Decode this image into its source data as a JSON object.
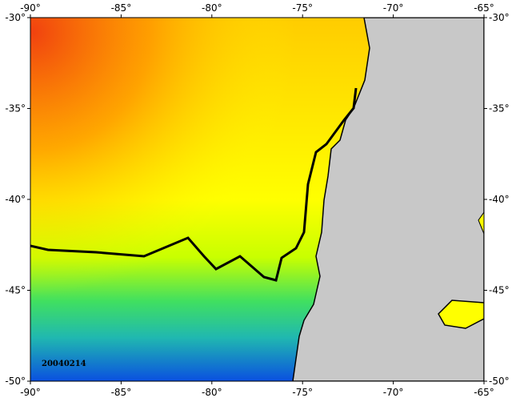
{
  "map": {
    "lon_labels": [
      "-90°",
      "-85°",
      "-80°",
      "-75°",
      "-70°",
      "-65°"
    ],
    "lat_labels": [
      "-30°",
      "-35°",
      "-40°",
      "-45°",
      "-50°"
    ],
    "date": "20040214"
  }
}
